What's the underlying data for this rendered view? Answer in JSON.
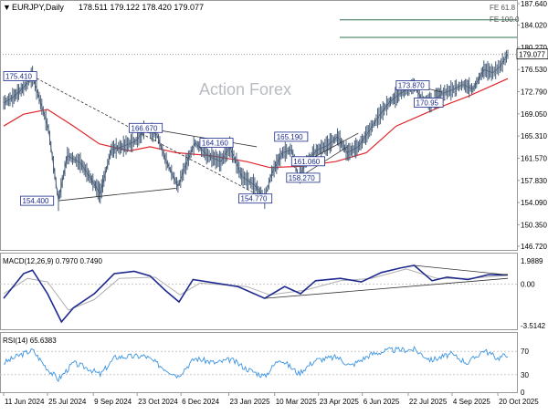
{
  "header": {
    "symbol_line": "EURJPY,Daily",
    "ohlc": "178.511 179.122 178.420 179.077"
  },
  "watermark": "Action Forex",
  "price_panel": {
    "y_ticks": [
      "187.640",
      "184.020",
      "180.270",
      "176.530",
      "172.790",
      "169.050",
      "165.310",
      "161.570",
      "157.830",
      "154.090",
      "150.350",
      "146.720"
    ],
    "last_price": "179.077",
    "fib_labels": [
      "FE 61.8",
      "FE 100.0"
    ],
    "annotations": [
      "175.410",
      "166.670",
      "164.160",
      "165.190",
      "173.870",
      "170.95",
      "158.270",
      "161.060",
      "154.770",
      "154.400"
    ]
  },
  "macd_panel": {
    "label": "MACD(12,26,9) 0.7970 0.7490",
    "y_ticks": [
      "1.9889",
      "0.00",
      "-3.5142"
    ]
  },
  "rsi_panel": {
    "label": "RSI(14) 65.6383",
    "y_ticks": [
      "70",
      "30",
      "0"
    ]
  },
  "x_ticks": [
    "11 Jun 2024",
    "25 Jul 2024",
    "9 Sep 2024",
    "23 Oct 2024",
    "6 Dec 2024",
    "23 Jan 2025",
    "10 Mar 2025",
    "23 Apr 2025",
    "6 Jun 2025",
    "22 Jul 2025",
    "4 Sep 2025",
    "20 Oct 2025"
  ],
  "chart_data": {
    "type": "line",
    "x_type": "date",
    "price": {
      "name": "EURJPY",
      "ylim": [
        146.72,
        187.64
      ],
      "points": [
        [
          "2024-06-11",
          170.9
        ],
        [
          "2024-06-20",
          171.8
        ],
        [
          "2024-07-01",
          173.5
        ],
        [
          "2024-07-10",
          175.41
        ],
        [
          "2024-07-18",
          171.0
        ],
        [
          "2024-07-26",
          166.5
        ],
        [
          "2024-08-05",
          154.4
        ],
        [
          "2024-08-14",
          162.0
        ],
        [
          "2024-08-27",
          160.8
        ],
        [
          "2024-09-05",
          158.5
        ],
        [
          "2024-09-16",
          155.6
        ],
        [
          "2024-09-27",
          163.0
        ],
        [
          "2024-10-08",
          163.5
        ],
        [
          "2024-10-22",
          164.5
        ],
        [
          "2024-10-31",
          166.67
        ],
        [
          "2024-11-12",
          165.5
        ],
        [
          "2024-11-20",
          161.5
        ],
        [
          "2024-12-03",
          156.8
        ],
        [
          "2024-12-11",
          160.5
        ],
        [
          "2024-12-20",
          164.16
        ],
        [
          "2025-01-02",
          162.0
        ],
        [
          "2025-01-15",
          161.0
        ],
        [
          "2025-01-24",
          163.5
        ],
        [
          "2025-02-05",
          158.5
        ],
        [
          "2025-02-18",
          157.0
        ],
        [
          "2025-02-28",
          154.77
        ],
        [
          "2025-03-07",
          159.0
        ],
        [
          "2025-03-18",
          162.5
        ],
        [
          "2025-03-27",
          163.0
        ],
        [
          "2025-04-03",
          158.27
        ],
        [
          "2025-04-11",
          161.06
        ],
        [
          "2025-04-22",
          163.0
        ],
        [
          "2025-05-02",
          163.7
        ],
        [
          "2025-05-12",
          165.19
        ],
        [
          "2025-05-22",
          162.5
        ],
        [
          "2025-06-02",
          163.5
        ],
        [
          "2025-06-12",
          166.0
        ],
        [
          "2025-06-24",
          169.0
        ],
        [
          "2025-07-03",
          171.0
        ],
        [
          "2025-07-14",
          172.5
        ],
        [
          "2025-07-28",
          173.87
        ],
        [
          "2025-08-05",
          171.5
        ],
        [
          "2025-08-14",
          170.95
        ],
        [
          "2025-08-25",
          172.5
        ],
        [
          "2025-09-03",
          173.0
        ],
        [
          "2025-09-15",
          174.0
        ],
        [
          "2025-09-25",
          173.2
        ],
        [
          "2025-10-06",
          176.5
        ],
        [
          "2025-10-15",
          176.0
        ],
        [
          "2025-10-22",
          177.0
        ],
        [
          "2025-10-30",
          179.077
        ]
      ]
    },
    "ma": {
      "points": [
        [
          "2024-06-11",
          167.0
        ],
        [
          "2024-07-01",
          169.0
        ],
        [
          "2024-07-25",
          169.8
        ],
        [
          "2024-08-20",
          167.0
        ],
        [
          "2024-09-15",
          164.0
        ],
        [
          "2024-10-15",
          162.8
        ],
        [
          "2024-11-05",
          163.5
        ],
        [
          "2024-12-01",
          162.5
        ],
        [
          "2025-01-05",
          162.0
        ],
        [
          "2025-02-10",
          161.0
        ],
        [
          "2025-03-05",
          160.0
        ],
        [
          "2025-04-05",
          160.2
        ],
        [
          "2025-05-10",
          161.0
        ],
        [
          "2025-06-10",
          162.5
        ],
        [
          "2025-07-10",
          167.0
        ],
        [
          "2025-08-20",
          170.0
        ],
        [
          "2025-09-20",
          172.0
        ],
        [
          "2025-10-30",
          175.0
        ]
      ]
    },
    "trendlines": [
      {
        "from": [
          "2024-07-10",
          175.41
        ],
        "to": [
          "2025-02-28",
          154.77
        ]
      },
      {
        "from": [
          "2024-08-05",
          154.4
        ],
        "to": [
          "2024-12-01",
          156.5
        ]
      },
      {
        "from": [
          "2024-10-31",
          166.67
        ],
        "to": [
          "2025-02-20",
          163.5
        ]
      },
      {
        "from": [
          "2025-04-03",
          158.27
        ],
        "to": [
          "2025-05-22",
          163.5
        ]
      },
      {
        "from": [
          "2025-04-11",
          161.06
        ],
        "to": [
          "2025-06-02",
          165.8
        ]
      },
      {
        "from": [
          "2025-07-28",
          173.87
        ],
        "to": [
          "2025-08-25",
          172.7
        ]
      },
      {
        "from": [
          "2025-08-14",
          170.95
        ],
        "to": [
          "2025-08-28",
          171.4
        ]
      }
    ],
    "fib_levels": [
      184.9,
      181.95
    ],
    "macd": {
      "ylim": [
        -3.5142,
        1.9889
      ],
      "macd_points": [
        [
          "2024-06-11",
          -1.2
        ],
        [
          "2024-07-01",
          0.9
        ],
        [
          "2024-07-10",
          1.2
        ],
        [
          "2024-07-25",
          -0.8
        ],
        [
          "2024-08-08",
          -3.2
        ],
        [
          "2024-08-20",
          -2.0
        ],
        [
          "2024-09-10",
          -0.8
        ],
        [
          "2024-09-30",
          0.9
        ],
        [
          "2024-10-20",
          1.1
        ],
        [
          "2024-11-05",
          0.7
        ],
        [
          "2024-11-20",
          -0.5
        ],
        [
          "2024-12-04",
          -1.5
        ],
        [
          "2024-12-18",
          0.4
        ],
        [
          "2025-01-10",
          0.1
        ],
        [
          "2025-02-01",
          -0.2
        ],
        [
          "2025-02-28",
          -1.2
        ],
        [
          "2025-03-20",
          -0.2
        ],
        [
          "2025-04-05",
          -0.8
        ],
        [
          "2025-04-20",
          0.3
        ],
        [
          "2025-05-15",
          0.5
        ],
        [
          "2025-06-05",
          0.2
        ],
        [
          "2025-06-25",
          1.0
        ],
        [
          "2025-07-15",
          1.4
        ],
        [
          "2025-07-28",
          1.6
        ],
        [
          "2025-08-15",
          0.3
        ],
        [
          "2025-08-30",
          0.6
        ],
        [
          "2025-09-20",
          0.4
        ],
        [
          "2025-10-10",
          0.8
        ],
        [
          "2025-10-30",
          0.8
        ]
      ],
      "signal_points": [
        [
          "2024-06-11",
          -0.8
        ],
        [
          "2024-07-05",
          0.5
        ],
        [
          "2024-07-25",
          0.2
        ],
        [
          "2024-08-15",
          -2.2
        ],
        [
          "2024-09-10",
          -1.3
        ],
        [
          "2024-10-05",
          0.5
        ],
        [
          "2024-11-10",
          0.6
        ],
        [
          "2024-12-05",
          -0.9
        ],
        [
          "2024-12-25",
          0.1
        ],
        [
          "2025-02-10",
          -0.2
        ],
        [
          "2025-03-05",
          -0.9
        ],
        [
          "2025-04-10",
          -0.5
        ],
        [
          "2025-05-15",
          0.3
        ],
        [
          "2025-06-15",
          0.5
        ],
        [
          "2025-07-20",
          1.3
        ],
        [
          "2025-08-20",
          0.5
        ],
        [
          "2025-09-20",
          0.5
        ],
        [
          "2025-10-30",
          0.75
        ]
      ],
      "trendlines": [
        {
          "from": [
            "2025-07-28",
            1.6
          ],
          "to": [
            "2025-10-30",
            0.8
          ]
        },
        {
          "from": [
            "2025-02-28",
            -1.2
          ],
          "to": [
            "2025-10-30",
            0.5
          ]
        }
      ]
    },
    "rsi": {
      "ylim": [
        0,
        100
      ],
      "levels": [
        70,
        30
      ],
      "points": [
        [
          "2024-06-11",
          50
        ],
        [
          "2024-06-25",
          62
        ],
        [
          "2024-07-10",
          72
        ],
        [
          "2024-07-25",
          40
        ],
        [
          "2024-08-05",
          22
        ],
        [
          "2024-08-20",
          50
        ],
        [
          "2024-09-05",
          40
        ],
        [
          "2024-09-16",
          30
        ],
        [
          "2024-10-01",
          60
        ],
        [
          "2024-10-31",
          62
        ],
        [
          "2024-11-20",
          40
        ],
        [
          "2024-12-03",
          28
        ],
        [
          "2024-12-20",
          58
        ],
        [
          "2025-01-10",
          50
        ],
        [
          "2025-01-25",
          56
        ],
        [
          "2025-02-10",
          40
        ],
        [
          "2025-02-28",
          27
        ],
        [
          "2025-03-15",
          58
        ],
        [
          "2025-04-03",
          32
        ],
        [
          "2025-04-20",
          55
        ],
        [
          "2025-05-12",
          60
        ],
        [
          "2025-05-25",
          45
        ],
        [
          "2025-06-15",
          65
        ],
        [
          "2025-07-03",
          72
        ],
        [
          "2025-07-28",
          73
        ],
        [
          "2025-08-14",
          55
        ],
        [
          "2025-09-03",
          65
        ],
        [
          "2025-09-20",
          50
        ],
        [
          "2025-10-06",
          72
        ],
        [
          "2025-10-20",
          58
        ],
        [
          "2025-10-30",
          65.6383
        ]
      ]
    }
  },
  "colors": {
    "price": "#4a5f7a",
    "ma": "#e0262b",
    "trendline": "#333333",
    "macd": "#1f2a8f",
    "signal": "#b0b0b0",
    "rsi": "#3d95e2",
    "label_text": "#1a2a8a",
    "fib": "#2f6f4f"
  }
}
